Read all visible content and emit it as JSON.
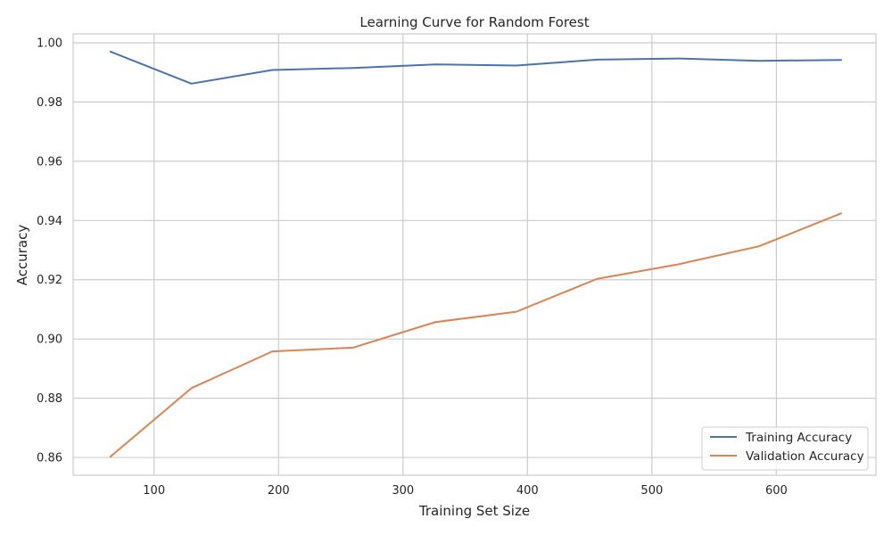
{
  "chart_data": {
    "type": "line",
    "title": "Learning Curve for Random Forest",
    "xlabel": "Training Set Size",
    "ylabel": "Accuracy",
    "xlim": [
      35,
      680
    ],
    "ylim": [
      0.854,
      1.003
    ],
    "xticks": [
      100,
      200,
      300,
      400,
      500,
      600
    ],
    "yticks": [
      0.86,
      0.88,
      0.9,
      0.92,
      0.94,
      0.96,
      0.98,
      1.0
    ],
    "ytick_labels": [
      "0.86",
      "0.88",
      "0.90",
      "0.92",
      "0.94",
      "0.96",
      "0.98",
      "1.00"
    ],
    "grid": true,
    "legend_position": "lower-right",
    "x": [
      65,
      130,
      195,
      260,
      326,
      391,
      456,
      521,
      586,
      652
    ],
    "series": [
      {
        "name": "Training Accuracy",
        "color": "#4c72b0",
        "values": [
          0.997,
          0.9862,
          0.9908,
          0.9915,
          0.9927,
          0.9923,
          0.9943,
          0.9947,
          0.9939,
          0.9942
        ]
      },
      {
        "name": "Validation Accuracy",
        "color": "#dd8452",
        "values": [
          0.8603,
          0.8834,
          0.8958,
          0.8971,
          0.9057,
          0.9092,
          0.9203,
          0.9252,
          0.9313,
          0.9424
        ]
      }
    ]
  }
}
